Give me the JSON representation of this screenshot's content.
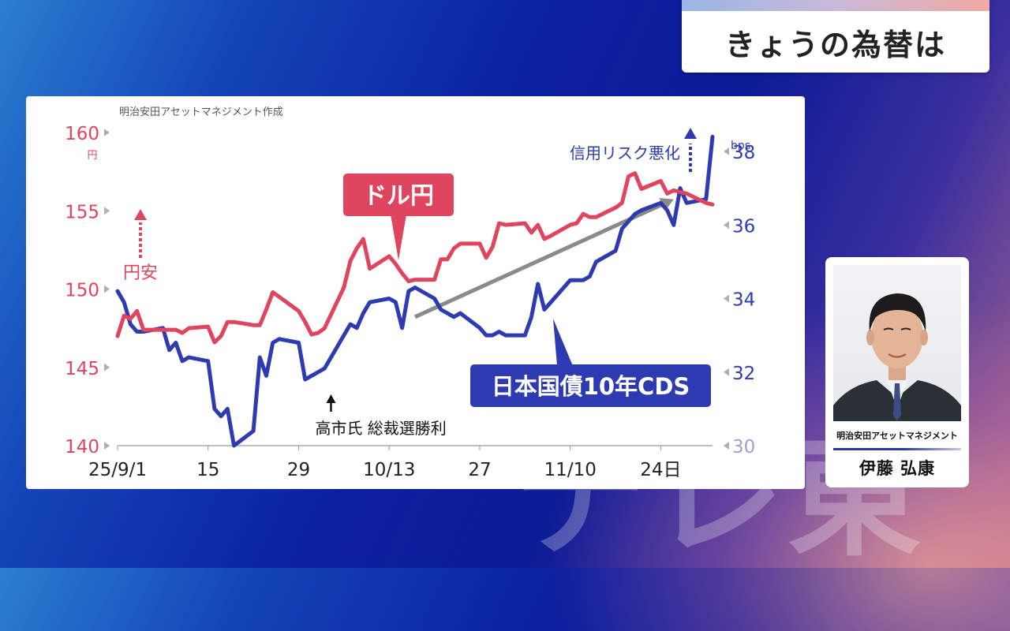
{
  "header": {
    "title": "きょうの為替は"
  },
  "watermark": "テレ東",
  "profile": {
    "organization": "明治安田アセットマネジメント",
    "name": "伊藤 弘康"
  },
  "colors": {
    "usdjpy": "#e0455f",
    "cds": "#2e3bb0",
    "trend_arrow": "#8a8a8a",
    "axis_left": "#e0455f",
    "axis_right": "#2e3bb0"
  },
  "chart_data": {
    "type": "line",
    "source_note": "明治安田アセットマネジメント作成",
    "x_tick_labels": [
      "25/9/1",
      "15",
      "29",
      "10/13",
      "27",
      "11/10",
      "24日"
    ],
    "x_tick_dates": [
      "2025-09-01",
      "2025-09-15",
      "2025-09-29",
      "2025-10-13",
      "2025-10-27",
      "2025-11-10",
      "2025-11-24"
    ],
    "x_range": [
      "2025-09-01",
      "2025-12-02"
    ],
    "left_axis": {
      "ticks": [
        140,
        145,
        150,
        155,
        160
      ],
      "range": [
        140,
        160
      ],
      "unit": "円"
    },
    "right_axis": {
      "ticks": [
        30,
        32,
        34,
        36,
        38
      ],
      "range": [
        30,
        38.4
      ],
      "unit": "bps"
    },
    "series": [
      {
        "name": "ドル円",
        "axis": "left",
        "points": [
          [
            "2025-09-01",
            147.0
          ],
          [
            "2025-09-02",
            148.3
          ],
          [
            "2025-09-03",
            148.1
          ],
          [
            "2025-09-04",
            148.6
          ],
          [
            "2025-09-05",
            147.4
          ],
          [
            "2025-09-08",
            147.4
          ],
          [
            "2025-09-09",
            147.4
          ],
          [
            "2025-09-10",
            147.4
          ],
          [
            "2025-09-11",
            147.2
          ],
          [
            "2025-09-12",
            147.5
          ],
          [
            "2025-09-15",
            147.6
          ],
          [
            "2025-09-16",
            146.6
          ],
          [
            "2025-09-17",
            147.0
          ],
          [
            "2025-09-18",
            147.9
          ],
          [
            "2025-09-19",
            147.9
          ],
          [
            "2025-09-22",
            147.7
          ],
          [
            "2025-09-23",
            147.7
          ],
          [
            "2025-09-24",
            148.7
          ],
          [
            "2025-09-25",
            149.8
          ],
          [
            "2025-09-26",
            149.5
          ],
          [
            "2025-09-29",
            148.6
          ],
          [
            "2025-09-30",
            147.9
          ],
          [
            "2025-10-01",
            147.1
          ],
          [
            "2025-10-02",
            147.2
          ],
          [
            "2025-10-03",
            147.5
          ],
          [
            "2025-10-06",
            150.1
          ],
          [
            "2025-10-07",
            151.8
          ],
          [
            "2025-10-08",
            152.6
          ],
          [
            "2025-10-09",
            153.2
          ],
          [
            "2025-10-10",
            151.3
          ],
          [
            "2025-10-13",
            152.1
          ],
          [
            "2025-10-14",
            151.6
          ],
          [
            "2025-10-15",
            151.0
          ],
          [
            "2025-10-16",
            150.5
          ],
          [
            "2025-10-17",
            150.6
          ],
          [
            "2025-10-20",
            150.6
          ],
          [
            "2025-10-21",
            151.9
          ],
          [
            "2025-10-22",
            151.9
          ],
          [
            "2025-10-23",
            152.6
          ],
          [
            "2025-10-24",
            152.9
          ],
          [
            "2025-10-27",
            152.9
          ],
          [
            "2025-10-28",
            152.0
          ],
          [
            "2025-10-29",
            152.7
          ],
          [
            "2025-10-30",
            154.2
          ],
          [
            "2025-10-31",
            154.1
          ],
          [
            "2025-11-03",
            154.2
          ],
          [
            "2025-11-04",
            153.6
          ],
          [
            "2025-11-05",
            154.1
          ],
          [
            "2025-11-06",
            153.2
          ],
          [
            "2025-11-07",
            153.4
          ],
          [
            "2025-11-10",
            154.1
          ],
          [
            "2025-11-11",
            154.2
          ],
          [
            "2025-11-12",
            154.8
          ],
          [
            "2025-11-13",
            154.6
          ],
          [
            "2025-11-14",
            154.6
          ],
          [
            "2025-11-17",
            155.2
          ],
          [
            "2025-11-18",
            155.5
          ],
          [
            "2025-11-19",
            157.2
          ],
          [
            "2025-11-20",
            157.4
          ],
          [
            "2025-11-21",
            156.4
          ],
          [
            "2025-11-24",
            156.9
          ],
          [
            "2025-11-25",
            156.1
          ],
          [
            "2025-11-26",
            156.3
          ],
          [
            "2025-11-27",
            156.2
          ],
          [
            "2025-11-28",
            156.1
          ],
          [
            "2025-12-01",
            155.5
          ],
          [
            "2025-12-02",
            155.4
          ]
        ]
      },
      {
        "name": "日本国債10年CDS",
        "axis": "right",
        "points": [
          [
            "2025-09-01",
            34.2
          ],
          [
            "2025-09-02",
            33.9
          ],
          [
            "2025-09-03",
            33.3
          ],
          [
            "2025-09-04",
            33.1
          ],
          [
            "2025-09-05",
            33.1
          ],
          [
            "2025-09-08",
            33.2
          ],
          [
            "2025-09-09",
            32.6
          ],
          [
            "2025-09-10",
            32.8
          ],
          [
            "2025-09-11",
            32.3
          ],
          [
            "2025-09-12",
            32.4
          ],
          [
            "2025-09-15",
            32.3
          ],
          [
            "2025-09-16",
            31.0
          ],
          [
            "2025-09-17",
            30.8
          ],
          [
            "2025-09-18",
            31.0
          ],
          [
            "2025-09-19",
            30.0
          ],
          [
            "2025-09-22",
            30.4
          ],
          [
            "2025-09-23",
            32.4
          ],
          [
            "2025-09-24",
            31.9
          ],
          [
            "2025-09-25",
            32.8
          ],
          [
            "2025-09-26",
            32.9
          ],
          [
            "2025-09-29",
            32.8
          ],
          [
            "2025-09-30",
            31.8
          ],
          [
            "2025-10-01",
            31.9
          ],
          [
            "2025-10-02",
            32.0
          ],
          [
            "2025-10-03",
            32.1
          ],
          [
            "2025-10-06",
            33.0
          ],
          [
            "2025-10-07",
            33.3
          ],
          [
            "2025-10-08",
            33.2
          ],
          [
            "2025-10-09",
            33.6
          ],
          [
            "2025-10-10",
            33.9
          ],
          [
            "2025-10-13",
            34.0
          ],
          [
            "2025-10-14",
            33.9
          ],
          [
            "2025-10-15",
            33.2
          ],
          [
            "2025-10-16",
            34.2
          ],
          [
            "2025-10-17",
            34.3
          ],
          [
            "2025-10-20",
            34.0
          ],
          [
            "2025-10-21",
            33.7
          ],
          [
            "2025-10-22",
            33.6
          ],
          [
            "2025-10-23",
            33.5
          ],
          [
            "2025-10-24",
            33.6
          ],
          [
            "2025-10-27",
            33.2
          ],
          [
            "2025-10-28",
            33.0
          ],
          [
            "2025-10-29",
            33.0
          ],
          [
            "2025-10-30",
            33.1
          ],
          [
            "2025-10-31",
            33.0
          ],
          [
            "2025-11-03",
            33.0
          ],
          [
            "2025-11-04",
            33.5
          ],
          [
            "2025-11-05",
            34.4
          ],
          [
            "2025-11-06",
            33.7
          ],
          [
            "2025-11-07",
            33.9
          ],
          [
            "2025-11-10",
            34.5
          ],
          [
            "2025-11-11",
            34.5
          ],
          [
            "2025-11-12",
            34.5
          ],
          [
            "2025-11-13",
            34.6
          ],
          [
            "2025-11-14",
            35.0
          ],
          [
            "2025-11-17",
            35.3
          ],
          [
            "2025-11-18",
            35.9
          ],
          [
            "2025-11-19",
            36.1
          ],
          [
            "2025-11-20",
            36.3
          ],
          [
            "2025-11-21",
            36.4
          ],
          [
            "2025-11-24",
            36.6
          ],
          [
            "2025-11-25",
            36.4
          ],
          [
            "2025-11-26",
            36.0
          ],
          [
            "2025-11-27",
            37.0
          ],
          [
            "2025-11-28",
            36.6
          ],
          [
            "2025-12-01",
            36.7
          ],
          [
            "2025-12-02",
            38.4
          ]
        ]
      }
    ],
    "trend_arrow": {
      "from": [
        "2025-10-17",
        33.5
      ],
      "to": [
        "2025-11-26",
        36.7
      ],
      "axis": "right"
    },
    "annotations": {
      "yen_weak": "円安",
      "credit_risk": "信用リスク悪化",
      "election": "高市氏 総裁選勝利",
      "election_date": "2025-10-04",
      "usdjpy_callout": "ドル円",
      "cds_callout": "日本国債10年CDS"
    },
    "grid": false,
    "legend": "none"
  }
}
